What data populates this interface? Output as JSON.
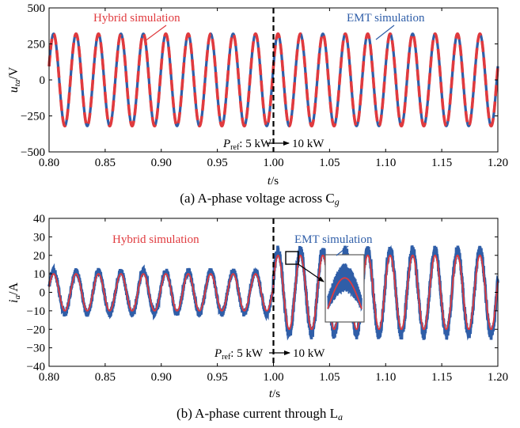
{
  "chart_data": [
    {
      "type": "line",
      "caption": "(a) A-phase voltage across C",
      "caption_sub": "g",
      "xlabel": "t",
      "xlabel_unit": "/s",
      "ylabel": "u",
      "ylabel_sub": "ta",
      "ylabel_unit": "/V",
      "xlim": [
        0.8,
        1.2
      ],
      "ylim": [
        -500,
        500
      ],
      "xticks": [
        "0.80",
        "0.85",
        "0.90",
        "0.95",
        "1.00",
        "1.05",
        "1.10",
        "1.15",
        "1.20"
      ],
      "yticks": [
        "500",
        "250",
        "0",
        "−250",
        "−500"
      ],
      "frequency_hz": 50,
      "series": [
        {
          "name": "EMT simulation",
          "style": "solid",
          "color": "#2f5ea8",
          "amplitude_before": 320,
          "amplitude_after": 320
        },
        {
          "name": "Hybrid simulation",
          "style": "dashed",
          "color": "#e03a3e",
          "amplitude_before": 320,
          "amplitude_after": 320
        }
      ],
      "step_time": 1.0,
      "annotation": {
        "prefix": "P",
        "prefix_sub": "ref",
        "from": ": 5 kW",
        "to": "10 kW"
      }
    },
    {
      "type": "line",
      "caption": "(b) A-phase current through L",
      "caption_sub": "a",
      "xlabel": "t",
      "xlabel_unit": "/s",
      "ylabel": "i",
      "ylabel_sub": "a",
      "ylabel_unit": "/A",
      "xlim": [
        0.8,
        1.2
      ],
      "ylim": [
        -40,
        40
      ],
      "xticks": [
        "0.80",
        "0.85",
        "0.90",
        "0.95",
        "1.00",
        "1.05",
        "1.10",
        "1.15",
        "1.20"
      ],
      "yticks": [
        "40",
        "30",
        "20",
        "10",
        "0",
        "−10",
        "−20",
        "−30",
        "−40"
      ],
      "frequency_hz": 50,
      "series": [
        {
          "name": "EMT simulation",
          "style": "solid",
          "color": "#2f5ea8",
          "amplitude_before": 11.5,
          "amplitude_after": 23
        },
        {
          "name": "Hybrid simulation",
          "style": "solid",
          "color": "#e03a3e",
          "amplitude_before": 10,
          "amplitude_after": 20
        }
      ],
      "step_time": 1.0,
      "annotation": {
        "prefix": "P",
        "prefix_sub": "ref",
        "from": ": 5 kW",
        "to": "10 kW"
      }
    }
  ]
}
